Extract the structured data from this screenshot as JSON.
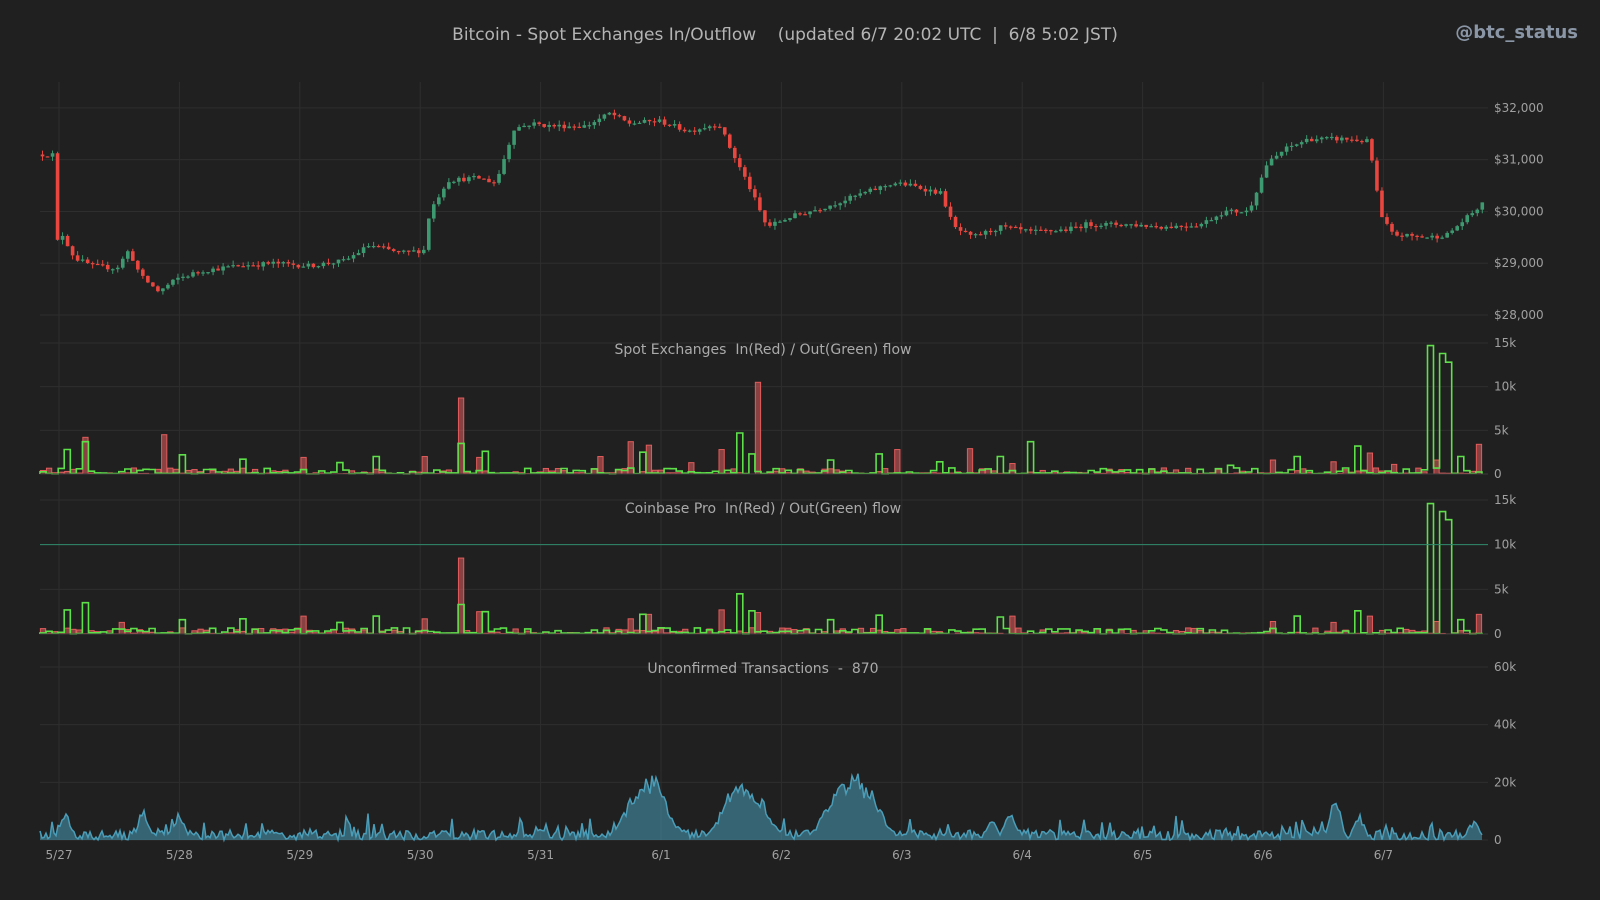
{
  "title": "Bitcoin - Spot Exchanges In/Outflow    (updated 6/7 20:02 UTC  |  6/8 5:02 JST)",
  "handle": "@btc_status",
  "colors": {
    "background": "#202020",
    "grid": "#2e2e2e",
    "up": "#3d9970",
    "down": "#e8463e",
    "inflow": "#e25c5c",
    "outflow": "#5ee04a",
    "mempool": "#4a9db8",
    "refline": "#2e8b6a"
  },
  "chart_data": [
    {
      "type": "candlestick",
      "name": "price",
      "ylim": [
        28000,
        32500
      ],
      "yticks": [
        28000,
        29000,
        30000,
        31000,
        32000
      ],
      "yticklabels": [
        "$28,000",
        "$29,000",
        "$30,000",
        "$31,000",
        "$32,000"
      ],
      "x_categories": [
        "5/27",
        "5/28",
        "5/29",
        "5/30",
        "5/31",
        "6/1",
        "6/2",
        "6/3",
        "6/4",
        "6/5",
        "6/6",
        "6/7"
      ],
      "close_anchors_day_value": [
        [
          0,
          29400
        ],
        [
          0.05,
          29550
        ],
        [
          0.15,
          29100
        ],
        [
          0.3,
          28950
        ],
        [
          0.5,
          28900
        ],
        [
          0.6,
          29250
        ],
        [
          0.7,
          28750
        ],
        [
          0.85,
          28450
        ],
        [
          1.0,
          28700
        ],
        [
          1.2,
          28850
        ],
        [
          1.5,
          28950
        ],
        [
          1.8,
          29000
        ],
        [
          2.1,
          28950
        ],
        [
          2.4,
          29050
        ],
        [
          2.6,
          29350
        ],
        [
          2.85,
          29200
        ],
        [
          3.05,
          29250
        ],
        [
          3.1,
          30000
        ],
        [
          3.25,
          30600
        ],
        [
          3.5,
          30650
        ],
        [
          3.65,
          30550
        ],
        [
          3.8,
          31600
        ],
        [
          3.95,
          31700
        ],
        [
          4.1,
          31650
        ],
        [
          4.4,
          31650
        ],
        [
          4.6,
          31900
        ],
        [
          4.75,
          31700
        ],
        [
          5.0,
          31750
        ],
        [
          5.25,
          31550
        ],
        [
          5.5,
          31700
        ],
        [
          5.6,
          31200
        ],
        [
          5.75,
          30500
        ],
        [
          5.9,
          29700
        ],
        [
          6.1,
          29900
        ],
        [
          6.4,
          30100
        ],
        [
          6.7,
          30350
        ],
        [
          6.95,
          30550
        ],
        [
          7.1,
          30500
        ],
        [
          7.35,
          30350
        ],
        [
          7.45,
          29700
        ],
        [
          7.6,
          29500
        ],
        [
          7.85,
          29700
        ],
        [
          8.1,
          29600
        ],
        [
          8.4,
          29650
        ],
        [
          8.55,
          29750
        ],
        [
          8.9,
          29750
        ],
        [
          9.2,
          29700
        ],
        [
          9.5,
          29750
        ],
        [
          9.7,
          30000
        ],
        [
          9.9,
          30000
        ],
        [
          10.05,
          30900
        ],
        [
          10.2,
          31200
        ],
        [
          10.4,
          31400
        ],
        [
          10.7,
          31400
        ],
        [
          10.9,
          31350
        ],
        [
          11.0,
          29900
        ],
        [
          11.1,
          29550
        ],
        [
          11.4,
          29500
        ],
        [
          11.55,
          29550
        ],
        [
          11.75,
          29950
        ],
        [
          11.85,
          30150
        ],
        [
          11.95,
          31100
        ]
      ],
      "source_note": ""
    },
    {
      "type": "bar",
      "name": "spot-flow",
      "title": "Spot Exchanges  In(Red) / Out(Green) flow",
      "ylim": [
        0,
        15000
      ],
      "yticks": [
        0,
        5000,
        10000,
        15000
      ],
      "yticklabels": [
        "0",
        "5k",
        "10k",
        "15k"
      ],
      "series": [
        {
          "name": "In",
          "spikes_day_value": [
            [
              0.2,
              4200
            ],
            [
              0.85,
              4500
            ],
            [
              2.0,
              1900
            ],
            [
              3.0,
              2000
            ],
            [
              3.3,
              8700
            ],
            [
              3.45,
              1900
            ],
            [
              4.45,
              2000
            ],
            [
              4.7,
              3700
            ],
            [
              4.85,
              3300
            ],
            [
              5.25,
              1300
            ],
            [
              5.5,
              2800
            ],
            [
              5.8,
              10500
            ],
            [
              6.95,
              2800
            ],
            [
              7.55,
              2900
            ],
            [
              7.9,
              1200
            ],
            [
              10.05,
              1600
            ],
            [
              10.55,
              1400
            ],
            [
              10.85,
              2400
            ],
            [
              11.05,
              1100
            ],
            [
              11.4,
              1600
            ],
            [
              11.75,
              3400
            ]
          ]
        },
        {
          "name": "Out",
          "spikes_day_value": [
            [
              0.05,
              2800
            ],
            [
              0.2,
              3700
            ],
            [
              1.0,
              2200
            ],
            [
              1.5,
              1700
            ],
            [
              2.3,
              1300
            ],
            [
              2.6,
              2000
            ],
            [
              3.3,
              3500
            ],
            [
              3.5,
              2600
            ],
            [
              4.8,
              2500
            ],
            [
              5.65,
              4700
            ],
            [
              5.75,
              2300
            ],
            [
              6.4,
              1600
            ],
            [
              6.8,
              2300
            ],
            [
              7.3,
              1400
            ],
            [
              7.8,
              2000
            ],
            [
              8.05,
              3700
            ],
            [
              9.7,
              1000
            ],
            [
              10.25,
              2000
            ],
            [
              10.75,
              3200
            ],
            [
              11.35,
              14700
            ],
            [
              11.45,
              13800
            ],
            [
              11.5,
              12800
            ],
            [
              11.6,
              2000
            ]
          ]
        }
      ]
    },
    {
      "type": "bar",
      "name": "coinbase-flow",
      "title": "Coinbase Pro  In(Red) / Out(Green) flow",
      "ylim": [
        0,
        15000
      ],
      "yticks": [
        0,
        5000,
        10000,
        15000
      ],
      "yticklabels": [
        "0",
        "5k",
        "10k",
        "15k"
      ],
      "reference_line": 10000,
      "series": [
        {
          "name": "In",
          "spikes_day_value": [
            [
              0.5,
              1300
            ],
            [
              2.0,
              2000
            ],
            [
              3.0,
              1700
            ],
            [
              3.3,
              8500
            ],
            [
              3.45,
              2500
            ],
            [
              4.7,
              1700
            ],
            [
              4.85,
              2200
            ],
            [
              5.5,
              2700
            ],
            [
              5.8,
              2400
            ],
            [
              7.9,
              2000
            ],
            [
              10.05,
              1400
            ],
            [
              10.55,
              1300
            ],
            [
              10.85,
              2000
            ],
            [
              11.4,
              1400
            ],
            [
              11.75,
              2200
            ]
          ]
        },
        {
          "name": "Out",
          "spikes_day_value": [
            [
              0.05,
              2700
            ],
            [
              0.2,
              3500
            ],
            [
              1.0,
              1600
            ],
            [
              1.5,
              1700
            ],
            [
              2.3,
              1300
            ],
            [
              2.6,
              2000
            ],
            [
              3.3,
              3300
            ],
            [
              3.5,
              2500
            ],
            [
              4.8,
              2200
            ],
            [
              5.65,
              4500
            ],
            [
              5.75,
              2600
            ],
            [
              6.4,
              1600
            ],
            [
              6.8,
              2100
            ],
            [
              7.8,
              1900
            ],
            [
              10.25,
              2000
            ],
            [
              10.75,
              2600
            ],
            [
              11.35,
              14600
            ],
            [
              11.45,
              13700
            ],
            [
              11.5,
              12800
            ],
            [
              11.6,
              1600
            ]
          ]
        }
      ]
    },
    {
      "type": "area",
      "name": "unconfirmed-tx",
      "title": "Unconfirmed Transactions  -  870",
      "ylim": [
        0,
        60000
      ],
      "yticks": [
        0,
        20000,
        40000,
        60000
      ],
      "yticklabels": [
        "0",
        "20k",
        "40k",
        "60k"
      ],
      "humps_day_value": [
        [
          0.05,
          9000
        ],
        [
          0.7,
          10000
        ],
        [
          1.0,
          9000
        ],
        [
          3.2,
          3500
        ],
        [
          4.0,
          4500
        ],
        [
          4.75,
          12000
        ],
        [
          4.85,
          19000
        ],
        [
          4.92,
          21000
        ],
        [
          5.55,
          15000
        ],
        [
          5.65,
          19500
        ],
        [
          5.75,
          17000
        ],
        [
          6.5,
          18000
        ],
        [
          6.6,
          22000
        ],
        [
          6.68,
          19000
        ],
        [
          7.75,
          6500
        ],
        [
          7.9,
          9500
        ],
        [
          10.5,
          4000
        ],
        [
          10.6,
          14000
        ],
        [
          10.8,
          8000
        ],
        [
          11.75,
          6000
        ]
      ]
    }
  ]
}
